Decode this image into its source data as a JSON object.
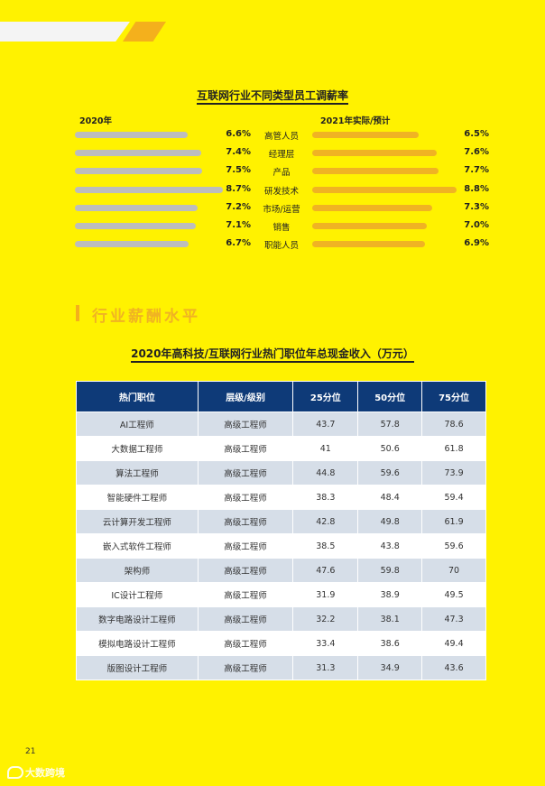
{
  "chart": {
    "title": "互联网行业不同类型员工调薪率",
    "left_label": "2020年",
    "right_label": "2021年实际/预计"
  },
  "chart_data": {
    "type": "bar",
    "title": "互联网行业不同类型员工调薪率",
    "categories": [
      "高管人员",
      "经理层",
      "产品",
      "研发技术",
      "市场/运营",
      "销售",
      "职能人员"
    ],
    "series": [
      {
        "name": "2020年",
        "values": [
          6.6,
          7.4,
          7.5,
          8.7,
          7.2,
          7.1,
          6.7
        ],
        "labels": [
          "6.6%",
          "7.4%",
          "7.5%",
          "8.7%",
          "7.2%",
          "7.1%",
          "6.7%"
        ],
        "color": "#BDBDBD"
      },
      {
        "name": "2021年实际/预计",
        "values": [
          6.5,
          7.6,
          7.7,
          8.8,
          7.3,
          7.0,
          6.9
        ],
        "labels": [
          "6.5%",
          "7.6%",
          "7.7%",
          "8.8%",
          "7.3%",
          "7.0%",
          "6.9%"
        ],
        "color": "#F0B323"
      }
    ]
  },
  "section": {
    "title": "行业薪酬水平"
  },
  "table": {
    "title": "2020年高科技/互联网行业热门职位年总现金收入（万元）",
    "headers": [
      "热门职位",
      "层级/级别",
      "25分位",
      "50分位",
      "75分位"
    ],
    "rows": [
      [
        "AI工程师",
        "高级工程师",
        "43.7",
        "57.8",
        "78.6"
      ],
      [
        "大数据工程师",
        "高级工程师",
        "41",
        "50.6",
        "61.8"
      ],
      [
        "算法工程师",
        "高级工程师",
        "44.8",
        "59.6",
        "73.9"
      ],
      [
        "智能硬件工程师",
        "高级工程师",
        "38.3",
        "48.4",
        "59.4"
      ],
      [
        "云计算开发工程师",
        "高级工程师",
        "42.8",
        "49.8",
        "61.9"
      ],
      [
        "嵌入式软件工程师",
        "高级工程师",
        "38.5",
        "43.8",
        "59.6"
      ],
      [
        "架构师",
        "高级工程师",
        "47.6",
        "59.8",
        "70"
      ],
      [
        "IC设计工程师",
        "高级工程师",
        "31.9",
        "38.9",
        "49.5"
      ],
      [
        "数字电路设计工程师",
        "高级工程师",
        "32.2",
        "38.1",
        "47.3"
      ],
      [
        "模拟电路设计工程师",
        "高级工程师",
        "33.4",
        "38.6",
        "49.4"
      ],
      [
        "版图设计工程师",
        "高级工程师",
        "31.3",
        "34.9",
        "43.6"
      ]
    ]
  },
  "footer": {
    "page_number": "21",
    "watermark": "大数跨境"
  },
  "colors": {
    "background": "#FFF200",
    "accent": "#F0B323",
    "table_header": "#0E3A78",
    "table_stripe": "#D6DEE8",
    "bar_gray": "#BDBDBD"
  }
}
